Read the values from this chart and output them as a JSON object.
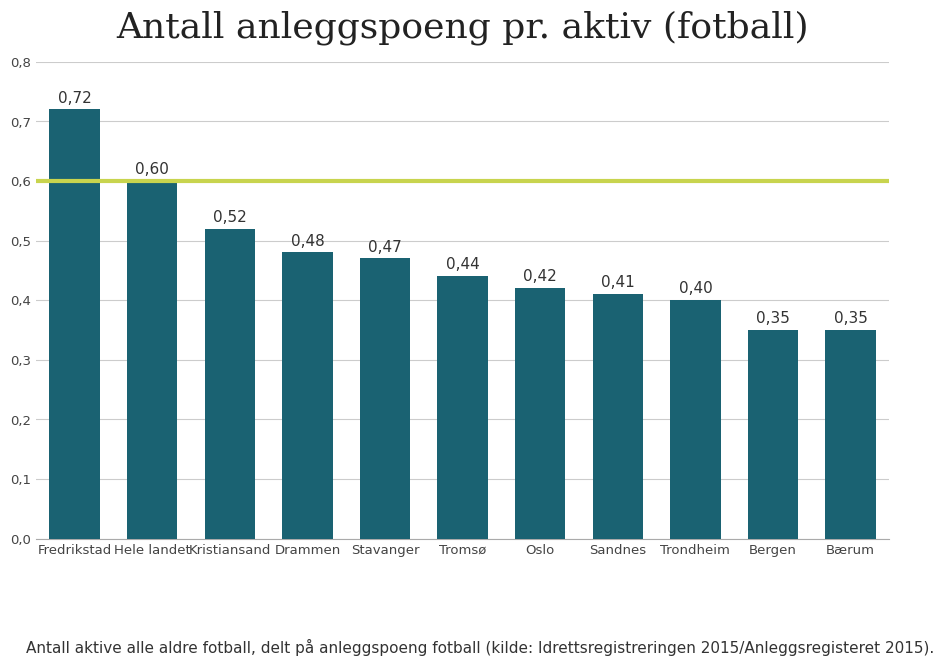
{
  "title": "Antall anleggspoeng pr. aktiv (fotball)",
  "categories": [
    "Fredrikstad",
    "Hele landet",
    "Kristiansand",
    "Drammen",
    "Stavanger",
    "Tromsø",
    "Oslo",
    "Sandnes",
    "Trondheim",
    "Bergen",
    "Bærum"
  ],
  "values": [
    0.72,
    0.6,
    0.52,
    0.48,
    0.47,
    0.44,
    0.42,
    0.41,
    0.4,
    0.35,
    0.35
  ],
  "bar_color": "#1a6272",
  "reference_line_y": 0.6,
  "reference_line_color": "#c8d44e",
  "ylim": [
    0.0,
    0.8
  ],
  "yticks": [
    0.0,
    0.1,
    0.2,
    0.3,
    0.4,
    0.5,
    0.6,
    0.7,
    0.8
  ],
  "ytick_labels": [
    "0,0",
    "0,1",
    "0,2",
    "0,3",
    "0,4",
    "0,5",
    "0,6",
    "0,7",
    "0,8"
  ],
  "value_labels": [
    "0,72",
    "0,60",
    "0,52",
    "0,48",
    "0,47",
    "0,44",
    "0,42",
    "0,41",
    "0,40",
    "0,35",
    "0,35"
  ],
  "caption": "Antall aktive alle aldre fotball, delt på anleggspoeng fotball (kilde: Idrettsregistreringen 2015/Anleggsregisteret 2015).",
  "title_fontsize": 26,
  "label_fontsize": 11,
  "tick_fontsize": 9.5,
  "caption_fontsize": 11,
  "background_color": "#ffffff",
  "grid_color": "#cccccc",
  "bar_width": 0.65
}
